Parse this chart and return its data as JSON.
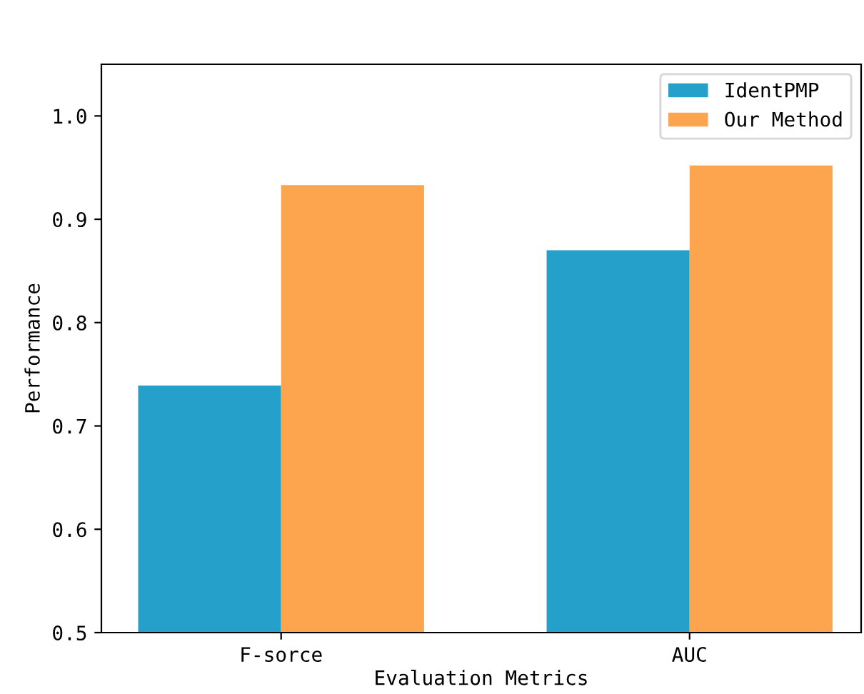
{
  "chart_data": {
    "type": "bar",
    "xlabel": "Evaluation Metrics",
    "ylabel": "Performance",
    "categories": [
      "F-sorce",
      "AUC"
    ],
    "series": [
      {
        "name": "IdentPMP",
        "color": "#24a0cb",
        "values": [
          0.739,
          0.87
        ]
      },
      {
        "name": "Our Method",
        "color": "#fda54e",
        "values": [
          0.933,
          0.952
        ]
      }
    ],
    "ylim": [
      0.5,
      1.05
    ],
    "yticks": [
      0.5,
      0.6,
      0.7,
      0.8,
      0.9,
      {
        "value": 1.0,
        "label": "1.0"
      }
    ],
    "legend": "top right",
    "grid": false
  }
}
